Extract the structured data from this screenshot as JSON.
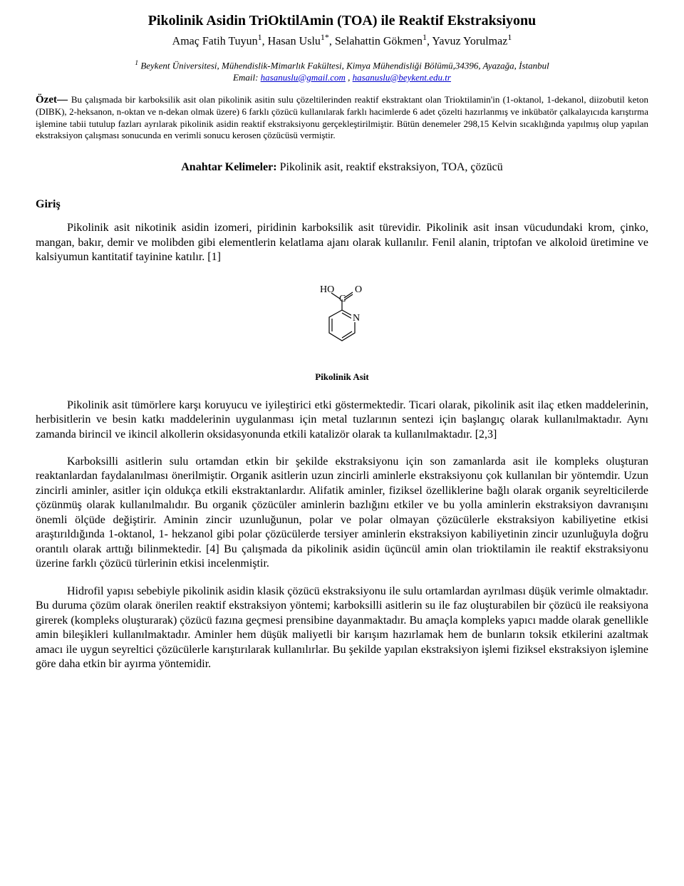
{
  "title": "Pikolinik Asidin TriOktilAmin (TOA) ile Reaktif Ekstraksiyonu",
  "authors_html": "Amaç Fatih Tuyun<span class=\"sup\">1</span>, Hasan Uslu<span class=\"sup\">1*</span>, Selahattin Gökmen<span class=\"sup\">1</span>, Yavuz Yorulmaz<span class=\"sup\">1</span>",
  "affiliation_html": "<span class=\"sup\">1</span> Beykent Üniversitesi, Mühendislik-Mimarlık Fakültesi, Kimya Mühendisliği Bölümü,34396, Ayazağa, İstanbul",
  "email": {
    "label": "Email: ",
    "link1_text": "hasanuslu@gmail.com",
    "link1_href": "mailto:hasanuslu@gmail.com",
    "between": "  , ",
    "link2_text": "hasanuslu@beykent.edu.tr",
    "link2_href": "mailto:hasanuslu@beykent.edu.tr",
    "link_color": "#0000cc"
  },
  "abstract": {
    "label": "Özet— ",
    "text": "Bu çalışmada bir karboksilik asit olan pikolinik asitin sulu çözeltilerinden reaktif ekstraktant olan Trioktilamin'in (1-oktanol, 1-dekanol, diizobutil keton (DIBK), 2-heksanon, n-oktan ve n-dekan olmak üzere) 6 farklı çözücü kullanılarak farklı hacimlerde 6 adet çözelti hazırlanmış ve inkübatör çalkalayıcıda karıştırma işlemine tabii tutulup fazları ayrılarak pikolinik asidin reaktif ekstraksiyonu gerçekleştirilmiştir. Bütün denemeler 298,15 Kelvin sıcaklığında yapılmış olup yapılan ekstraksiyon çalışması sonucunda en verimli sonucu kerosen çözücüsü vermiştir."
  },
  "keywords": {
    "label": "Anahtar Kelimeler: ",
    "text": "Pikolinik asit, reaktif ekstraksiyon, TOA, çözücü"
  },
  "section_intro": "Giriş",
  "para1": "Pikolinik asit nikotinik asidin izomeri, piridinin karboksilik asit türevidir. Pikolinik asit insan vücudundaki krom, çinko, mangan, bakır, demir ve molibden gibi elementlerin kelatlama ajanı olarak kullanılır. Fenil alanin, triptofan ve alkoloid üretimine ve kalsiyumun kantitatif tayinine katılır. [1]",
  "figure": {
    "caption": "Pikolinik Asit",
    "atoms": {
      "HO": "HO",
      "O": "O",
      "C": "C",
      "N": "N"
    },
    "line_color": "#000000",
    "line_width": 1.2
  },
  "para2": "Pikolinik asit tümörlere karşı koruyucu ve iyileştirici etki göstermektedir. Ticari olarak, pikolinik asit ilaç etken maddelerinin, herbisitlerin ve besin katkı maddelerinin uygulanması için metal tuzlarının sentezi için başlangıç olarak kullanılmaktadır. Aynı zamanda birincil ve ikincil alkollerin oksidasyonunda etkili katalizör olarak ta kullanılmaktadır. [2,3]",
  "para3": "Karboksilli asitlerin sulu ortamdan etkin bir şekilde ekstraksiyonu için son zamanlarda asit ile kompleks oluşturan reaktanlardan faydalanılması önerilmiştir. Organik asitlerin uzun zincirli aminlerle ekstraksiyonu çok kullanılan bir yöntemdir. Uzun zincirli aminler, asitler için oldukça etkili ekstraktanlardır. Alifatik aminler, fiziksel özelliklerine bağlı olarak organik seyrelticilerde çözünmüş olarak kullanılmalıdır. Bu organik çözücüler aminlerin bazlığını etkiler ve bu yolla aminlerin ekstraksiyon davranışını önemli ölçüde değiştirir. Aminin zincir uzunluğunun, polar ve polar olmayan çözücülerle ekstraksiyon kabiliyetine etkisi araştırıldığında 1-oktanol, 1- hekzanol gibi polar çözücülerde tersiyer aminlerin ekstraksiyon kabiliyetinin zincir uzunluğuyla doğru orantılı olarak arttığı bilinmektedir. [4] Bu çalışmada da pikolinik asidin üçüncül amin olan trioktilamin ile reaktif ekstraksiyonu üzerine farklı çözücü türlerinin etkisi incelenmiştir.",
  "para4": "Hidrofil yapısı sebebiyle pikolinik asidin klasik çözücü ekstraksiyonu ile sulu ortamlardan ayrılması düşük verimle olmaktadır.  Bu duruma çözüm olarak önerilen reaktif ekstraksiyon yöntemi; karboksilli asitlerin su ile faz oluşturabilen bir çözücü ile reaksiyona girerek (kompleks oluşturarak) çözücü fazına geçmesi prensibine dayanmaktadır.  Bu amaçla kompleks yapıcı madde olarak genellikle amin bileşikleri kullanılmaktadır.  Aminler hem düşük maliyetli bir karışım hazırlamak hem de bunların toksik etkilerini azaltmak amacı ile uygun seyreltici çözücülerle karıştırılarak kullanılırlar.  Bu şekilde yapılan ekstraksiyon işlemi fiziksel ekstraksiyon işlemine göre daha etkin bir ayırma yöntemidir.",
  "colors": {
    "background": "#ffffff",
    "text": "#000000",
    "link": "#0000cc"
  }
}
